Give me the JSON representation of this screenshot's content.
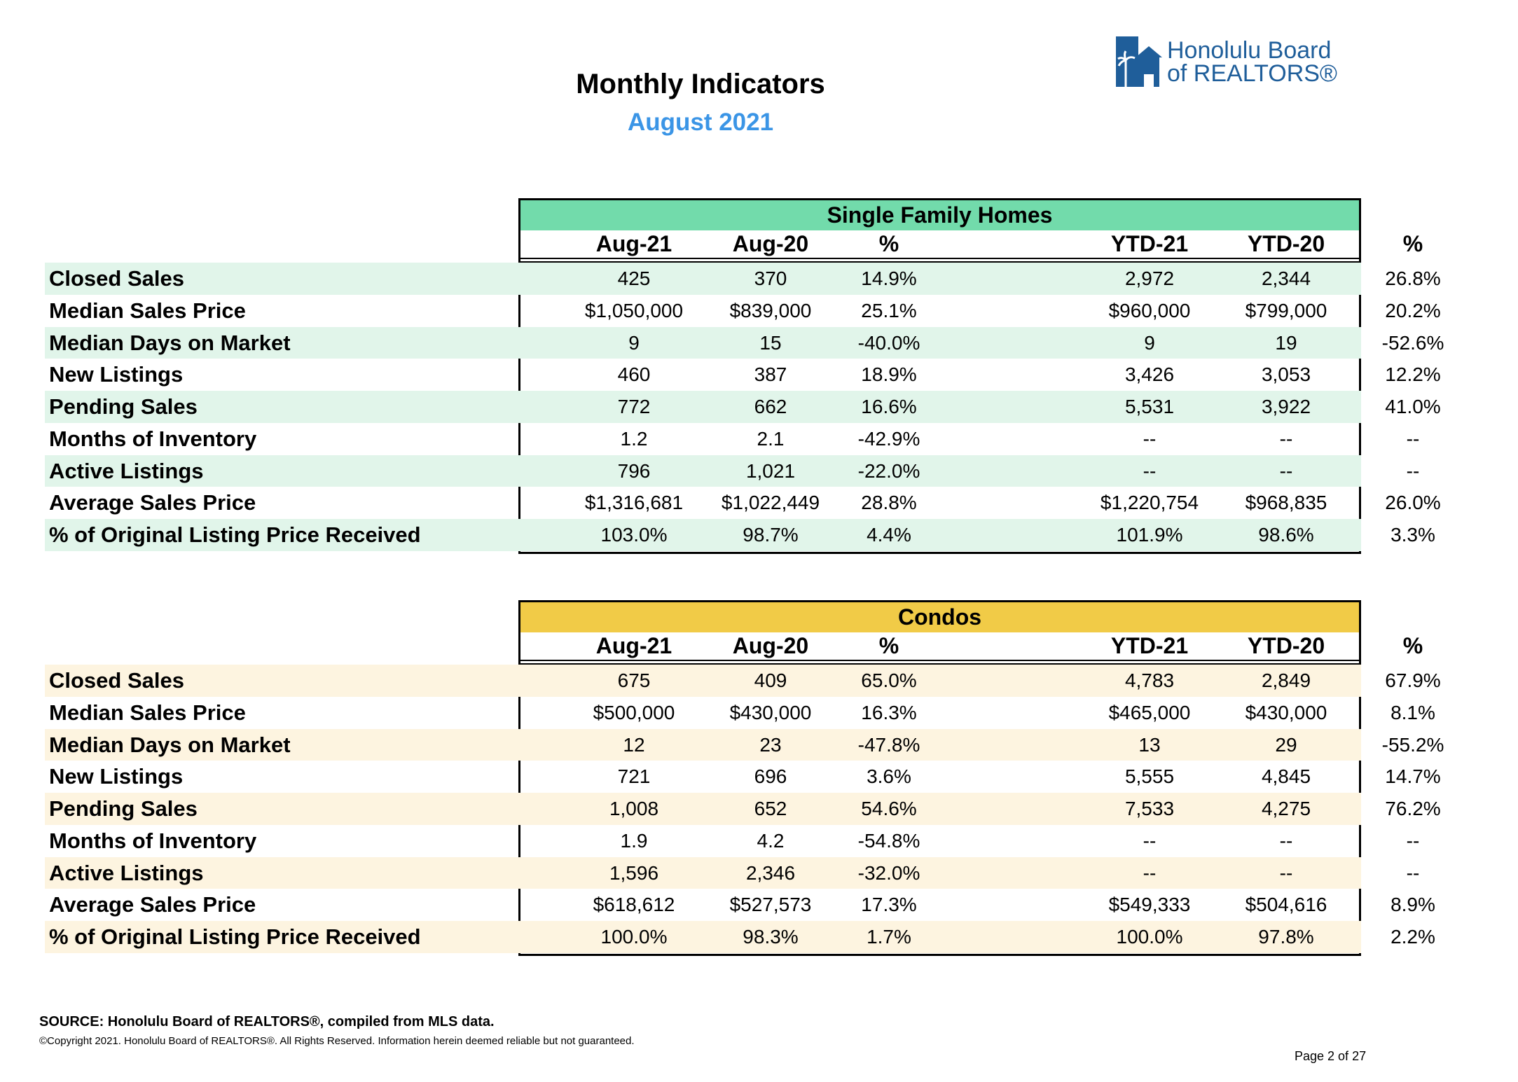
{
  "header": {
    "title": "Monthly Indicators",
    "subtitle": "August 2021",
    "logo_line1": "Honolulu Board",
    "logo_line2": "of REALTORS®"
  },
  "columns": [
    "Aug-21",
    "Aug-20",
    "%",
    "YTD-21",
    "YTD-20",
    "%"
  ],
  "single_family": {
    "title": "Single Family Homes",
    "rows": [
      {
        "label": "Closed Sales",
        "values": [
          "425",
          "370",
          "14.9%",
          "2,972",
          "2,344",
          "26.8%"
        ]
      },
      {
        "label": "Median Sales Price",
        "values": [
          "$1,050,000",
          "$839,000",
          "25.1%",
          "$960,000",
          "$799,000",
          "20.2%"
        ]
      },
      {
        "label": "Median Days on Market",
        "values": [
          "9",
          "15",
          "-40.0%",
          "9",
          "19",
          "-52.6%"
        ]
      },
      {
        "label": "New Listings",
        "values": [
          "460",
          "387",
          "18.9%",
          "3,426",
          "3,053",
          "12.2%"
        ]
      },
      {
        "label": "Pending Sales",
        "values": [
          "772",
          "662",
          "16.6%",
          "5,531",
          "3,922",
          "41.0%"
        ]
      },
      {
        "label": "Months of Inventory",
        "values": [
          "1.2",
          "2.1",
          "-42.9%",
          "--",
          "--",
          "--"
        ]
      },
      {
        "label": "Active Listings",
        "values": [
          "796",
          "1,021",
          "-22.0%",
          "--",
          "--",
          "--"
        ]
      },
      {
        "label": "Average Sales Price",
        "values": [
          "$1,316,681",
          "$1,022,449",
          "28.8%",
          "$1,220,754",
          "$968,835",
          "26.0%"
        ]
      },
      {
        "label": "% of Original Listing Price Received",
        "values": [
          "103.0%",
          "98.7%",
          "4.4%",
          "101.9%",
          "98.6%",
          "3.3%"
        ]
      }
    ]
  },
  "condos": {
    "title": "Condos",
    "rows": [
      {
        "label": "Closed Sales",
        "values": [
          "675",
          "409",
          "65.0%",
          "4,783",
          "2,849",
          "67.9%"
        ]
      },
      {
        "label": "Median Sales Price",
        "values": [
          "$500,000",
          "$430,000",
          "16.3%",
          "$465,000",
          "$430,000",
          "8.1%"
        ]
      },
      {
        "label": "Median Days on Market",
        "values": [
          "12",
          "23",
          "-47.8%",
          "13",
          "29",
          "-55.2%"
        ]
      },
      {
        "label": "New Listings",
        "values": [
          "721",
          "696",
          "3.6%",
          "5,555",
          "4,845",
          "14.7%"
        ]
      },
      {
        "label": "Pending Sales",
        "values": [
          "1,008",
          "652",
          "54.6%",
          "7,533",
          "4,275",
          "76.2%"
        ]
      },
      {
        "label": "Months of Inventory",
        "values": [
          "1.9",
          "4.2",
          "-54.8%",
          "--",
          "--",
          "--"
        ]
      },
      {
        "label": "Active Listings",
        "values": [
          "1,596",
          "2,346",
          "-32.0%",
          "--",
          "--",
          "--"
        ]
      },
      {
        "label": "Average Sales Price",
        "values": [
          "$618,612",
          "$527,573",
          "17.3%",
          "$549,333",
          "$504,616",
          "8.9%"
        ]
      },
      {
        "label": "% of Original Listing Price Received",
        "values": [
          "100.0%",
          "98.3%",
          "1.7%",
          "100.0%",
          "97.8%",
          "2.2%"
        ]
      }
    ]
  },
  "footer": {
    "source": "SOURCE: Honolulu Board of REALTORS®, compiled from MLS data.",
    "copyright": "©Copyright 2021. Honolulu Board of REALTORS®. All Rights Reserved. Information herein deemed reliable but not guaranteed.",
    "page": "Page 2 of 27"
  },
  "colors": {
    "single_family_band": "#72dbab",
    "single_family_shade": "#e1f5ea",
    "condos_band": "#f1cb47",
    "condos_shade": "#fdf4e0",
    "subtitle": "#3b95e6",
    "logo": "#1f5e9a"
  }
}
